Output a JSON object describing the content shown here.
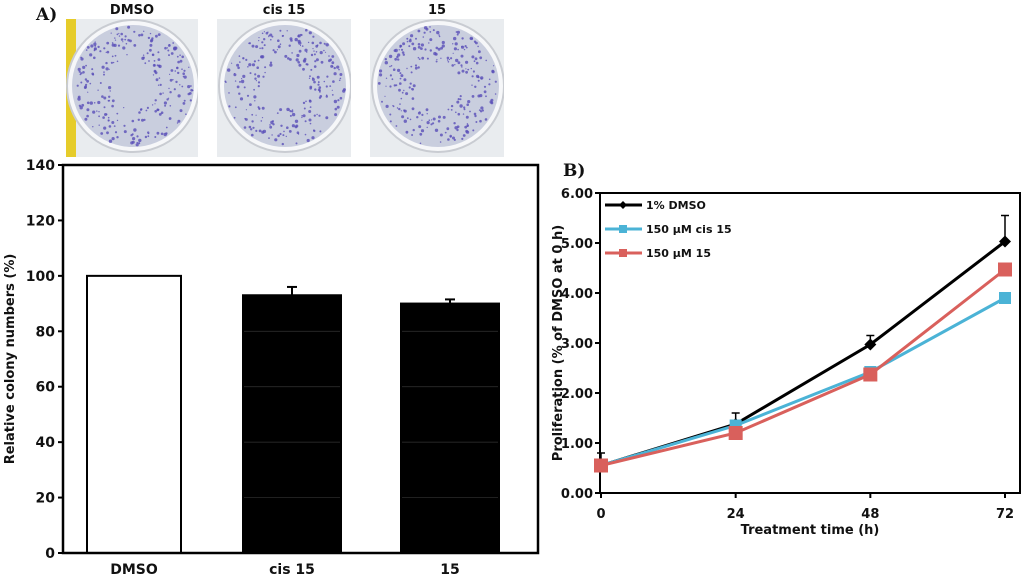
{
  "panel_a": {
    "label": "A)",
    "plate_labels": [
      "DMSO",
      "cis 15",
      "15"
    ]
  },
  "panel_b": {
    "label": "B)"
  },
  "chart_data": [
    {
      "type": "bar",
      "categories": [
        "DMSO",
        "cis 15",
        "15"
      ],
      "values": [
        100,
        93,
        90
      ],
      "errors": [
        0,
        3,
        1.5
      ],
      "bar_colors": [
        "#ffffff",
        "#000000",
        "#000000"
      ],
      "xlabel": "",
      "ylabel": "Relative colony numbers (%)",
      "ylim": [
        0,
        140
      ],
      "yticks": [
        0,
        20,
        40,
        60,
        80,
        100,
        120,
        140
      ]
    },
    {
      "type": "line",
      "x": [
        0,
        24,
        48,
        72
      ],
      "xticks": [
        0,
        24,
        48,
        72
      ],
      "xlabel": "Treatment time (h)",
      "ylabel": "Proliferation (% of DMSO at 0 h)",
      "ylim": [
        0,
        6
      ],
      "yticks": [
        "0.00",
        "1.00",
        "2.00",
        "3.00",
        "4.00",
        "5.00",
        "6.00"
      ],
      "legend_position": "top-left",
      "series": [
        {
          "name": "1% DMSO",
          "values": [
            0.55,
            1.38,
            2.97,
            5.03
          ],
          "errors": [
            0.25,
            0.22,
            0.18,
            0.52
          ],
          "color": "#000000",
          "marker": "diamond"
        },
        {
          "name": "150 µM cis 15",
          "values": [
            0.55,
            1.35,
            2.42,
            3.9
          ],
          "errors": [
            0,
            0,
            0,
            0
          ],
          "color": "#4bb3d6",
          "marker": "square"
        },
        {
          "name": "150 µM 15",
          "values": [
            0.55,
            1.2,
            2.37,
            4.47
          ],
          "errors": [
            0,
            0,
            0,
            0
          ],
          "color": "#d9605c",
          "marker": "square"
        }
      ]
    }
  ]
}
